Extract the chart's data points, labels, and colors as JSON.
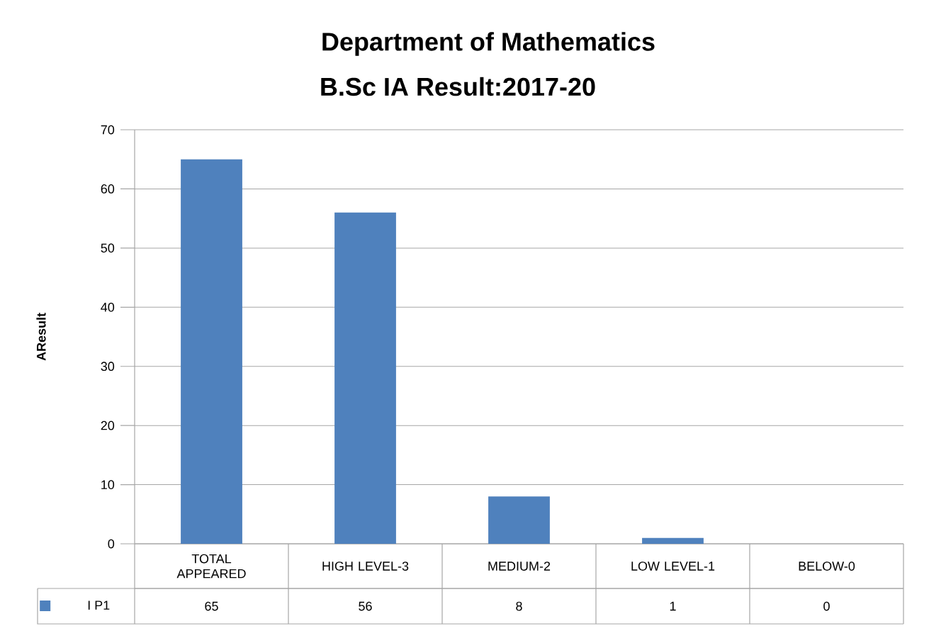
{
  "chart_data": {
    "type": "bar",
    "title": "Department of Mathematics",
    "subtitle": "B.Sc IA Result:2017-20",
    "ylabel": "AResult",
    "categories": [
      "TOTAL APPEARED",
      "HIGH LEVEL-3",
      "MEDIUM-2",
      "LOW LEVEL-1",
      "BELOW-0"
    ],
    "series": [
      {
        "name": "I P1",
        "color": "#4f81bd",
        "values": [
          65,
          56,
          8,
          1,
          0
        ]
      }
    ],
    "ylim": [
      0,
      70
    ],
    "yticks": [
      0,
      10,
      20,
      30,
      40,
      50,
      60,
      70
    ],
    "grid": "y",
    "data_labels": true,
    "legend": "bottom left"
  }
}
